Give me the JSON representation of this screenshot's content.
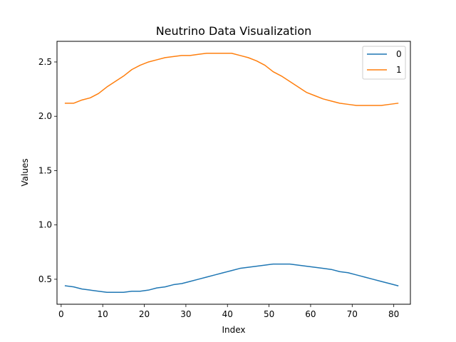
{
  "chart_data": {
    "type": "line",
    "title": "Neutrino Data Visualization",
    "xlabel": "Index",
    "ylabel": "Values",
    "xlim": [
      -1.0,
      84.0
    ],
    "ylim": [
      0.27,
      2.69
    ],
    "xticks": [
      0,
      10,
      20,
      30,
      40,
      50,
      60,
      70,
      80
    ],
    "yticks": [
      0.5,
      1.0,
      1.5,
      2.0,
      2.5
    ],
    "xtick_labels": [
      "0",
      "10",
      "20",
      "30",
      "40",
      "50",
      "60",
      "70",
      "80"
    ],
    "ytick_labels": [
      "0.5",
      "1.0",
      "1.5",
      "2.0",
      "2.5"
    ],
    "grid": false,
    "legend_position": "top-right",
    "series": [
      {
        "name": "0",
        "color": "#1f77b4",
        "x": [
          1,
          3,
          5,
          7,
          9,
          11,
          13,
          15,
          17,
          19,
          21,
          23,
          25,
          27,
          29,
          31,
          33,
          35,
          37,
          39,
          41,
          43,
          45,
          47,
          49,
          51,
          53,
          55,
          57,
          59,
          61,
          63,
          65,
          67,
          69,
          71,
          73,
          75,
          77,
          79,
          81
        ],
        "values": [
          0.44,
          0.43,
          0.41,
          0.4,
          0.39,
          0.38,
          0.38,
          0.38,
          0.39,
          0.39,
          0.4,
          0.42,
          0.43,
          0.45,
          0.46,
          0.48,
          0.5,
          0.52,
          0.54,
          0.56,
          0.58,
          0.6,
          0.61,
          0.62,
          0.63,
          0.64,
          0.64,
          0.64,
          0.63,
          0.62,
          0.61,
          0.6,
          0.59,
          0.57,
          0.56,
          0.54,
          0.52,
          0.5,
          0.48,
          0.46,
          0.44
        ]
      },
      {
        "name": "1",
        "color": "#ff7f0e",
        "x": [
          1,
          3,
          5,
          7,
          9,
          11,
          13,
          15,
          17,
          19,
          21,
          23,
          25,
          27,
          29,
          31,
          33,
          35,
          37,
          39,
          41,
          43,
          45,
          47,
          49,
          51,
          53,
          55,
          57,
          59,
          61,
          63,
          65,
          67,
          69,
          71,
          73,
          75,
          77,
          79,
          81
        ],
        "values": [
          2.12,
          2.12,
          2.15,
          2.17,
          2.21,
          2.27,
          2.32,
          2.37,
          2.43,
          2.47,
          2.5,
          2.52,
          2.54,
          2.55,
          2.56,
          2.56,
          2.57,
          2.58,
          2.58,
          2.58,
          2.58,
          2.56,
          2.54,
          2.51,
          2.47,
          2.41,
          2.37,
          2.32,
          2.27,
          2.22,
          2.19,
          2.16,
          2.14,
          2.12,
          2.11,
          2.1,
          2.1,
          2.1,
          2.1,
          2.11,
          2.12
        ]
      }
    ]
  }
}
